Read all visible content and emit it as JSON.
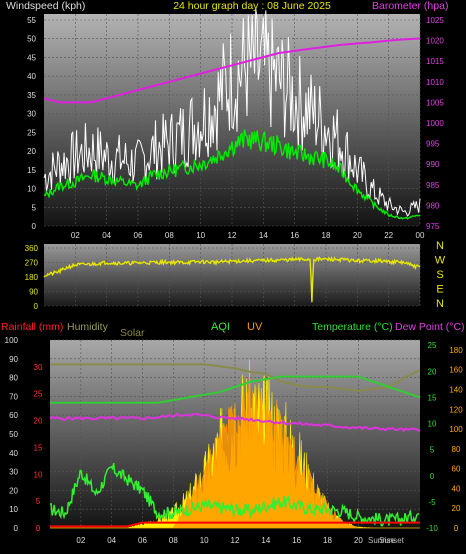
{
  "chart_data": [
    {
      "type": "line",
      "title": "24 hour graph day : 08 June 2025",
      "left_axis": {
        "label": "Windspeed (kph)",
        "ylim": [
          0,
          55
        ],
        "ticks": [
          "0",
          "5",
          "10",
          "15",
          "20",
          "25",
          "30",
          "35",
          "40",
          "45",
          "50",
          "55"
        ]
      },
      "right_axis": {
        "label": "Barometer (hpa)",
        "ylim": [
          975,
          1025
        ],
        "ticks": [
          "975",
          "980",
          "985",
          "990",
          "995",
          "1000",
          "1005",
          "1010",
          "1015",
          "1020",
          "1025"
        ]
      },
      "x_ticks": [
        "02",
        "04",
        "06",
        "08",
        "10",
        "12",
        "14",
        "16",
        "18",
        "20",
        "22",
        "00"
      ],
      "x": [
        0,
        1,
        2,
        3,
        4,
        5,
        6,
        7,
        8,
        9,
        10,
        11,
        12,
        13,
        14,
        15,
        16,
        17,
        18,
        19,
        20,
        21,
        22,
        23,
        24
      ],
      "series": [
        {
          "name": "Windspeed",
          "color": "#00ee00",
          "values": [
            8,
            11,
            12,
            14,
            13,
            12,
            11,
            14,
            15,
            16,
            17,
            19,
            22,
            24,
            23,
            22,
            20,
            19,
            18,
            15,
            10,
            6,
            3,
            2,
            3
          ]
        },
        {
          "name": "Gust",
          "color": "#ffffff",
          "values": [
            14,
            18,
            20,
            22,
            20,
            19,
            18,
            22,
            24,
            27,
            31,
            36,
            43,
            46,
            45,
            42,
            37,
            33,
            29,
            24,
            16,
            10,
            6,
            4,
            6
          ]
        },
        {
          "name": "Barometer",
          "color": "#e020e0",
          "axis": "right",
          "values": [
            1006,
            1005,
            1005,
            1005,
            1006,
            1007,
            1008,
            1009,
            1010,
            1011,
            1012,
            1013,
            1014,
            1015,
            1016,
            1017,
            1017.5,
            1018,
            1018.5,
            1019,
            1019.3,
            1019.6,
            1020,
            1020.3,
            1020.5
          ]
        }
      ]
    },
    {
      "type": "scatter",
      "ylabel_ticks": [
        "0",
        "90",
        "180",
        "270",
        "360"
      ],
      "ylim": [
        0,
        360
      ],
      "compass": [
        "N",
        "W",
        "S",
        "E",
        "N"
      ],
      "x_ticks": [
        "02",
        "04",
        "06",
        "08",
        "10",
        "12",
        "14",
        "16",
        "18",
        "20",
        "22",
        "00"
      ],
      "series": [
        {
          "name": "Wind direction",
          "color": "#e6e600",
          "x": [
            0,
            0.5,
            1,
            1.5,
            2,
            3,
            4,
            5,
            6,
            7,
            8,
            9,
            10,
            11,
            12,
            13,
            14,
            15,
            16,
            17,
            17.1,
            17.2,
            18,
            19,
            20,
            21,
            22,
            23,
            23.5,
            24
          ],
          "values": [
            190,
            200,
            215,
            240,
            255,
            260,
            270,
            265,
            268,
            270,
            272,
            270,
            275,
            272,
            278,
            280,
            282,
            285,
            288,
            290,
            30,
            290,
            290,
            288,
            280,
            282,
            275,
            270,
            250,
            240
          ]
        }
      ]
    },
    {
      "type": "area",
      "labels": {
        "rainfall": "Rainfall (mm)",
        "humidity": "Humidity",
        "solar": "Solar",
        "aqi": "AQI",
        "uv": "UV",
        "temperature": "Temperature (°C)",
        "dewpoint": "Dew Point (°C)"
      },
      "left_ticks_pct": [
        "0",
        "10",
        "20",
        "30",
        "40",
        "50",
        "60",
        "70",
        "80",
        "90",
        "100"
      ],
      "rain_ticks": [
        "0",
        "5",
        "10",
        "15",
        "20",
        "25",
        "30"
      ],
      "temp_ticks": [
        "-10",
        "-5",
        "0",
        "5",
        "10",
        "15",
        "20",
        "25"
      ],
      "solar_ticks": [
        "0",
        "20",
        "40",
        "60",
        "80",
        "100",
        "120",
        "140",
        "160",
        "180"
      ],
      "x_ticks": [
        "02",
        "04",
        "06",
        "08",
        "10",
        "12",
        "14",
        "16",
        "18",
        "20"
      ],
      "sun_labels": [
        "Sunrise",
        "Sunset"
      ],
      "x": [
        0,
        1,
        2,
        3,
        4,
        5,
        6,
        7,
        8,
        9,
        10,
        11,
        12,
        13,
        14,
        15,
        16,
        17,
        18,
        19,
        20,
        21,
        22,
        23,
        24
      ],
      "series": [
        {
          "name": "Humidity",
          "color": "#8a8a4a",
          "unit": "%",
          "values": [
            87,
            87,
            87,
            87,
            87,
            87,
            87,
            87,
            87,
            87,
            87,
            86,
            85,
            83,
            82,
            78,
            76,
            75,
            75,
            74,
            73,
            74,
            75,
            80,
            84
          ]
        },
        {
          "name": "Temperature",
          "color": "#33cc33",
          "unit": "°C",
          "values": [
            14,
            14,
            14,
            14,
            14,
            14,
            14,
            14,
            14.5,
            15,
            15.5,
            16,
            17,
            18,
            18.5,
            19,
            19,
            19,
            19,
            19,
            19,
            18,
            17,
            16,
            15
          ]
        },
        {
          "name": "Dew Point",
          "color": "#dd33dd",
          "unit": "°C",
          "values": [
            11,
            11,
            11,
            11,
            11,
            11,
            11,
            11.2,
            11.5,
            11.8,
            11.5,
            11.2,
            11,
            10.8,
            10.5,
            10.2,
            10,
            9.8,
            9.6,
            9.4,
            9.2,
            9,
            9,
            8.8,
            8.8
          ]
        },
        {
          "name": "Solar",
          "color": "#ffee00",
          "unit": "W/m²",
          "values": [
            0,
            0,
            0,
            0,
            0,
            0,
            5,
            10,
            20,
            40,
            70,
            110,
            150,
            155,
            145,
            130,
            100,
            60,
            25,
            8,
            1,
            0,
            0,
            0,
            0
          ]
        },
        {
          "name": "UV",
          "color": "#ff9900",
          "values": [
            0,
            0,
            0,
            0,
            0,
            0,
            0,
            0,
            0,
            1,
            2,
            3,
            4,
            4.5,
            4,
            3.5,
            2.5,
            1.5,
            0.8,
            0.2,
            0,
            0,
            0,
            0,
            0
          ]
        },
        {
          "name": "AQI",
          "color": "#33ee33",
          "values": [
            10,
            8,
            30,
            18,
            32,
            26,
            20,
            8,
            8,
            10,
            12,
            11,
            10,
            9,
            12,
            14,
            12,
            10,
            10,
            9,
            6,
            5,
            4,
            5,
            8
          ]
        },
        {
          "name": "Rainfall",
          "color": "#ff0000",
          "unit": "mm",
          "values": [
            0.3,
            0.3,
            0.3,
            0.3,
            0.3,
            0.3,
            1,
            1,
            1,
            1,
            1,
            1,
            1,
            1,
            1,
            1,
            1,
            1,
            1,
            1,
            1,
            1,
            1,
            1,
            1
          ]
        }
      ]
    }
  ]
}
